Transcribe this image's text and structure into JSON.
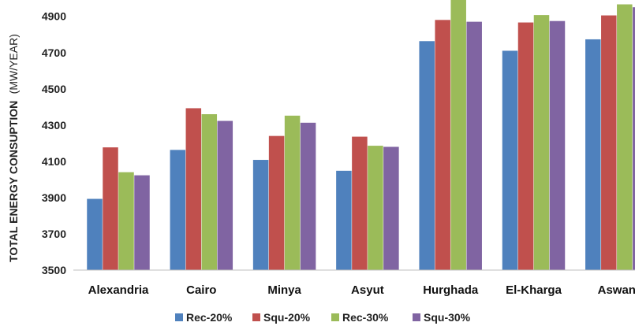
{
  "chart_data": {
    "type": "bar",
    "title": "",
    "xlabel": "",
    "ylabel": "TOTAL ENERGY CONSUPTION",
    "ylabel_unit": "(MW/YEAR)",
    "ylim": [
      3500,
      4990
    ],
    "yticks": [
      3500,
      3700,
      3900,
      4100,
      4300,
      4500,
      4700,
      4900
    ],
    "grid": false,
    "legend_position": "bottom",
    "categories": [
      "Alexandria",
      "Cairo",
      "Minya",
      "Asyut",
      "Hurghada",
      "El-Kharga",
      "Aswan"
    ],
    "series": [
      {
        "name": "Rec-20%",
        "color": "#4f81bd",
        "values": [
          3893,
          4163,
          4108,
          4048,
          4763,
          4710,
          4773
        ]
      },
      {
        "name": "Squ-20%",
        "color": "#c0504d",
        "values": [
          4177,
          4393,
          4240,
          4236,
          4880,
          4866,
          4905
        ]
      },
      {
        "name": "Rec-30%",
        "color": "#9bbb59",
        "values": [
          4040,
          4360,
          4352,
          4186,
          4990,
          4907,
          4966
        ]
      },
      {
        "name": "Squ-30%",
        "color": "#8064a2",
        "values": [
          4023,
          4323,
          4313,
          4180,
          4870,
          4874,
          4950
        ]
      }
    ]
  }
}
